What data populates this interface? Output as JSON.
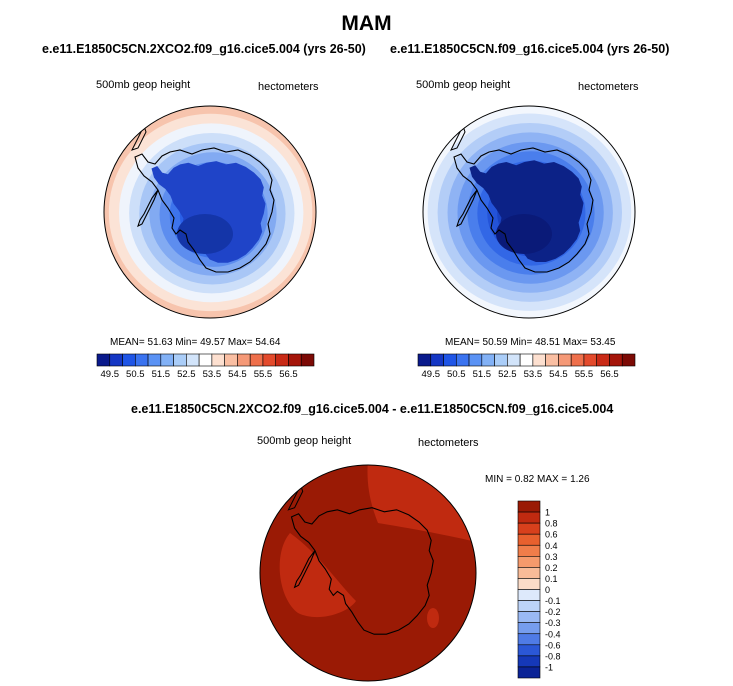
{
  "main_title": "MAM",
  "panels": [
    {
      "title": "e.e11.E1850C5CN.2XCO2.f09_g16.cice5.004 (yrs 26-50)",
      "variable": "500mb geop height",
      "units": "hectometers",
      "stats": {
        "mean_label": "MEAN=",
        "mean": "51.63",
        "min_label": "Min=",
        "min": "49.57",
        "max_label": "Max=",
        "max": "54.64"
      }
    },
    {
      "title": "e.e11.E1850C5CN.f09_g16.cice5.004 (yrs 26-50)",
      "variable": "500mb geop height",
      "units": "hectometers",
      "stats": {
        "mean_label": "MEAN=",
        "mean": "50.59",
        "min_label": "Min=",
        "min": "48.51",
        "max_label": "Max=",
        "max": "53.45"
      }
    },
    {
      "title": "e.e11.E1850C5CN.2XCO2.f09_g16.cice5.004 - e.e11.E1850C5CN.f09_g16.cice5.004",
      "variable": "500mb geop height",
      "units": "hectometers",
      "stats": {
        "min_label": "MIN =",
        "min": "0.82",
        "max_label": "MAX =",
        "max": "1.26"
      }
    }
  ],
  "abs_colorbar": {
    "labels": [
      "49.5",
      "50.5",
      "51.5",
      "52.5",
      "53.5",
      "54.5",
      "55.5",
      "56.5"
    ],
    "colors": [
      "#0a1a8c",
      "#1537c4",
      "#1f55e6",
      "#3a73f0",
      "#5a92f4",
      "#82b1f6",
      "#aacdf8",
      "#d2e4fa",
      "#ffffff",
      "#fde0d0",
      "#fabfa3",
      "#f59977",
      "#ee6f4b",
      "#e34a2c",
      "#c92a16",
      "#a5150a",
      "#7c0a05"
    ]
  },
  "diff_colorbar": {
    "labels": [
      "1",
      "0.8",
      "0.6",
      "0.4",
      "0.3",
      "0.2",
      "0.1",
      "0",
      "-0.1",
      "-0.2",
      "-0.3",
      "-0.4",
      "-0.6",
      "-0.8",
      "-1"
    ],
    "colors": [
      "#9a1a05",
      "#c02a10",
      "#d8401c",
      "#e8602e",
      "#f07d4a",
      "#f59a6c",
      "#f8bb98",
      "#fbdcc8",
      "#dde9fb",
      "#bcd3f8",
      "#9ab9f4",
      "#769dee",
      "#4f7be6",
      "#2b57d6",
      "#1538b8",
      "#0b2396"
    ]
  },
  "map_fill": {
    "panel1_rings": [
      "#f7c4ad",
      "#fbe3d6",
      "#eff4fc",
      "#cddff9",
      "#a8c6f6",
      "#82aaf2",
      "#5d8def",
      "#3d74ec",
      "#2a60e8",
      "#1f4fd8"
    ],
    "panel1_core": [
      "#1f44c8",
      "#1435a8"
    ],
    "panel2_rings": [
      "#f3f7fd",
      "#d5e4fa",
      "#b3cdf7",
      "#8fb3f4",
      "#6b98f0",
      "#4a7eec",
      "#3267e6",
      "#2353d8",
      "#1a43c2",
      "#1236a8"
    ],
    "panel2_core": [
      "#0c2287",
      "#0a1a78"
    ],
    "diff_main": "#9a1a05",
    "diff_light": "#c02a10"
  }
}
